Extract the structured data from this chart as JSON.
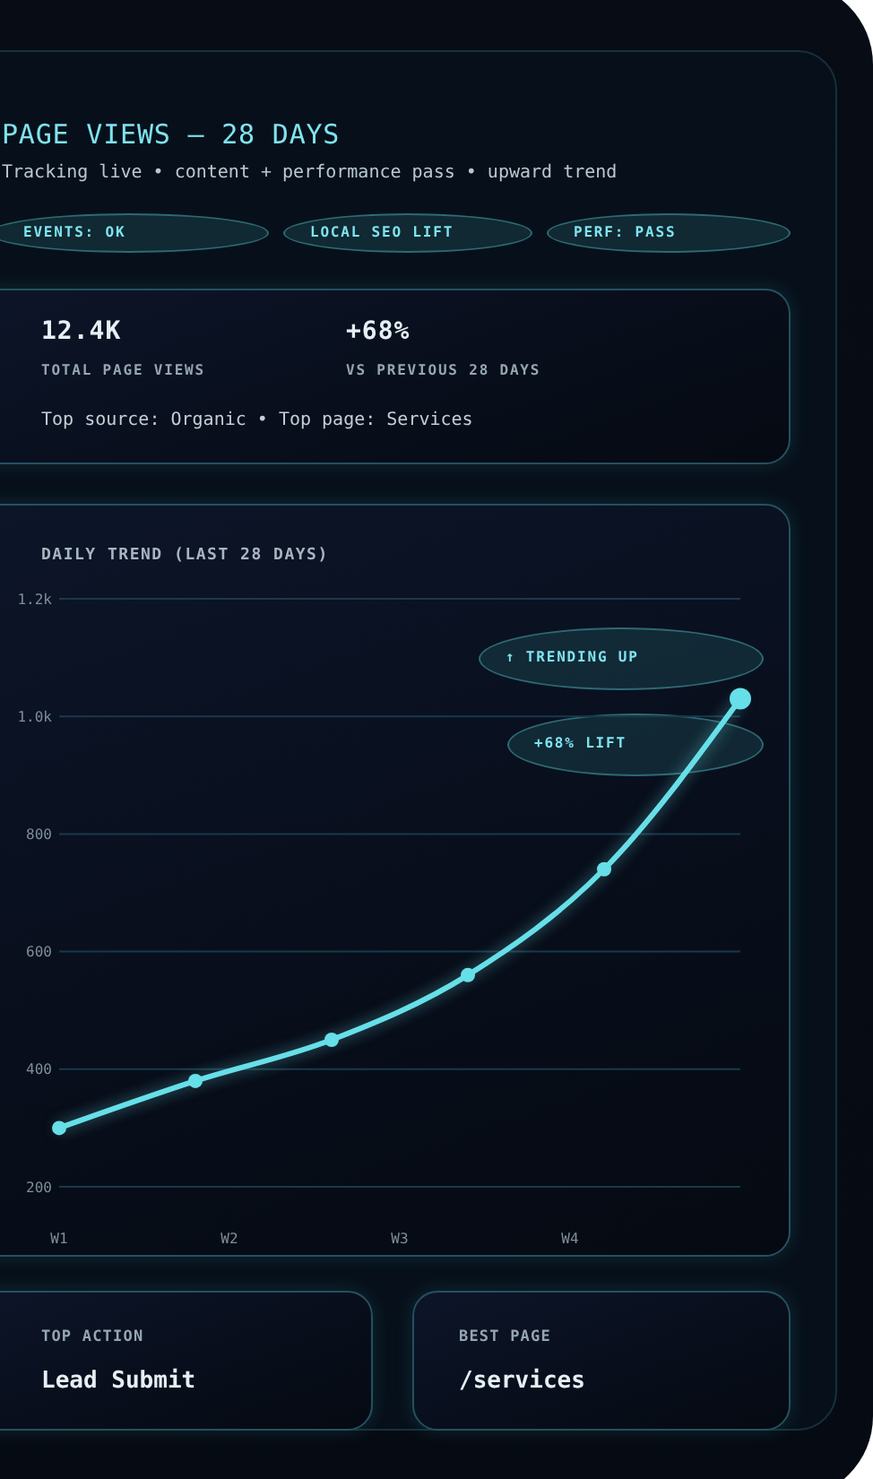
{
  "chart_data": [
    {
      "type": "other",
      "title": "PAGE VIEWS — 28 DAYS",
      "subtitle": "Tracking live • content + performance pass • upward trend",
      "annotations": [
        "EVENTS: OK",
        "LOCAL SEO LIFT",
        "PERF: PASS"
      ]
    },
    {
      "type": "other",
      "annotations": [
        "12.4K",
        "TOTAL PAGE VIEWS",
        "+68%",
        "VS PREVIOUS 28 DAYS",
        "Top source: Organic • Top page: Services"
      ]
    },
    {
      "type": "line",
      "title": "DAILY TREND (LAST 28 DAYS)",
      "categories": [
        "W1",
        null,
        null,
        null,
        null,
        "W2",
        null,
        null,
        null,
        null,
        "W3",
        null,
        null,
        null,
        null,
        "W4",
        null,
        null,
        null,
        null,
        null
      ],
      "values": [
        300,
        null,
        null,
        null,
        380,
        null,
        null,
        null,
        450,
        null,
        null,
        null,
        560,
        null,
        null,
        null,
        740,
        null,
        null,
        null,
        1030
      ],
      "color": "#67dfe8",
      "ylim": [
        200,
        1200
      ],
      "yticks": [
        200,
        400,
        600,
        800,
        {
          "value": 1000,
          "label": "1.0k"
        },
        {
          "value": 1200,
          "label": "1.2k"
        }
      ],
      "grid": "y",
      "marker": "circle",
      "line_style": "solid",
      "annotations": [
        "↑ TRENDING UP",
        "+68% LIFT"
      ]
    },
    {
      "type": "other",
      "title": "TOP ACTION",
      "annotations": [
        "Lead Submit"
      ]
    },
    {
      "type": "other",
      "title": "BEST PAGE",
      "annotations": [
        "/services"
      ]
    }
  ]
}
